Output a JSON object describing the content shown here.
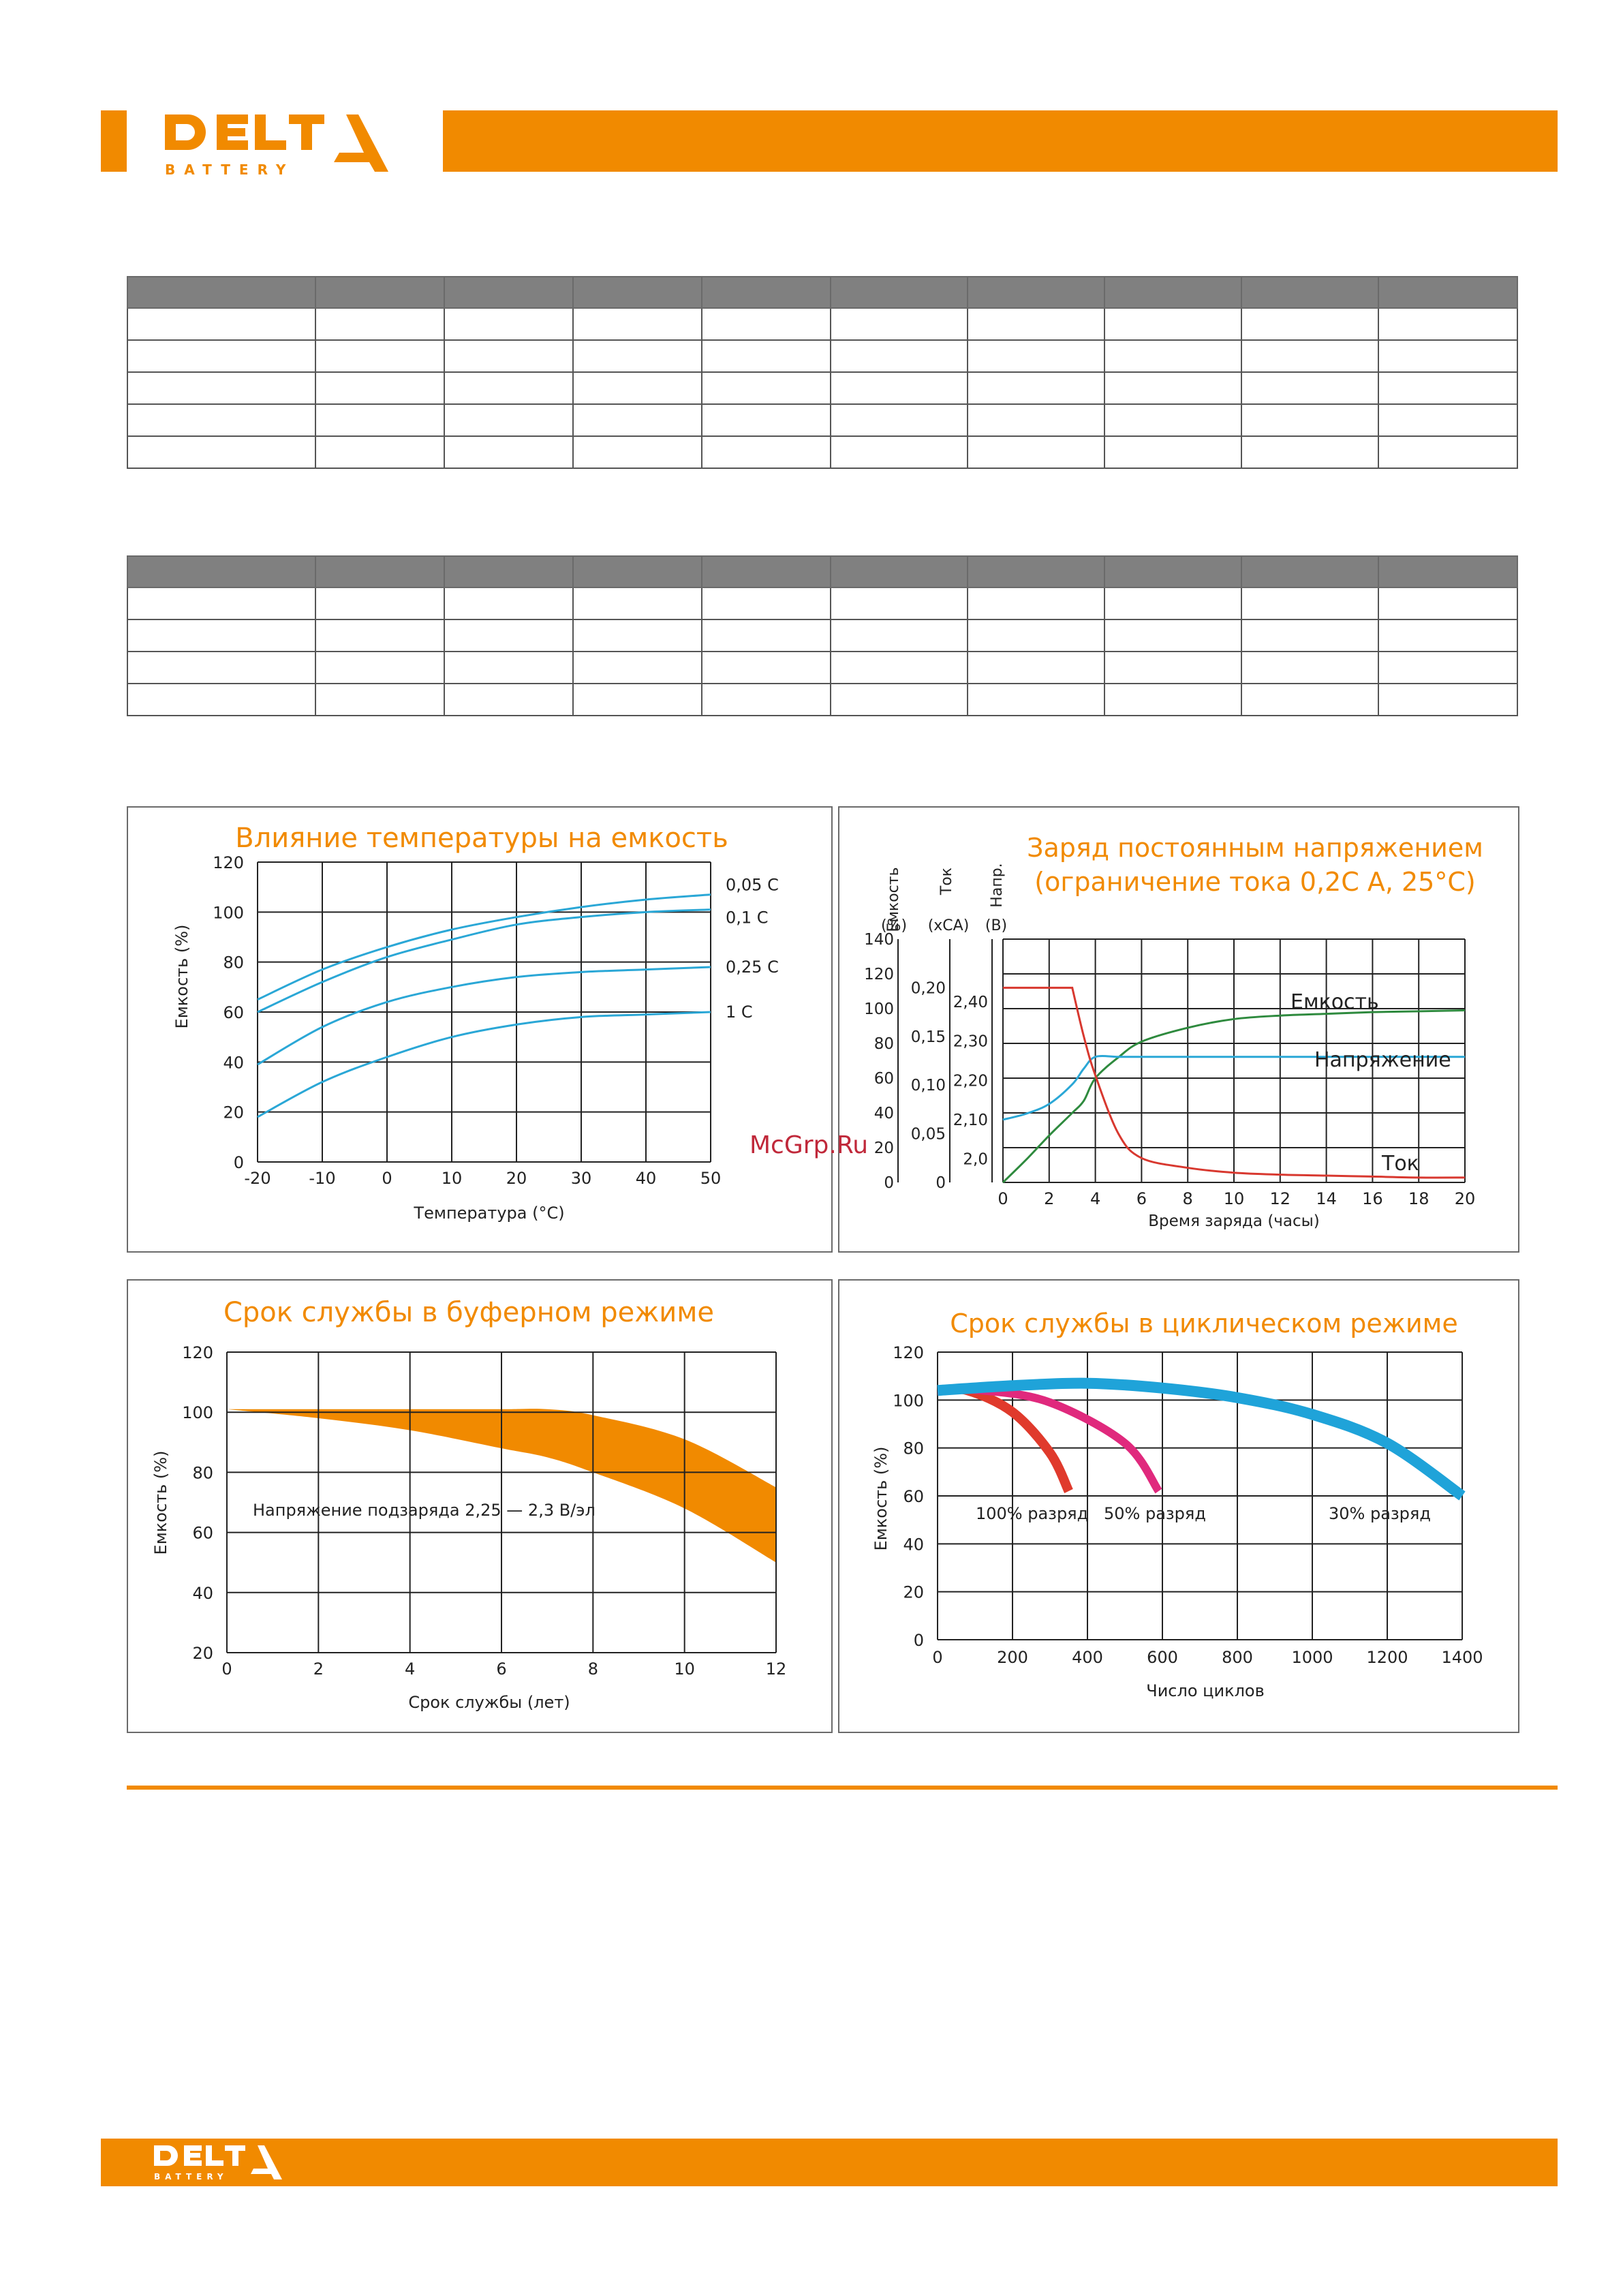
{
  "brand": {
    "name": "DELTA",
    "sub": "BATTERY",
    "color": "#f18a00"
  },
  "watermark": "McGrp.Ru",
  "tables": {
    "rows": 5,
    "cols": 10
  },
  "charts": {
    "temp": {
      "title": "Влияние температуры на емкость",
      "ylabel": "Емкость (%)",
      "xlabel": "Температура (°C)",
      "xticks": [
        "-20",
        "-10",
        "0",
        "10",
        "20",
        "30",
        "40",
        "50"
      ],
      "yticks": [
        "0",
        "20",
        "40",
        "60",
        "80",
        "100",
        "120"
      ],
      "series_labels": [
        "0,05 C",
        "0,1 C",
        "0,25 C",
        "1 C"
      ]
    },
    "charge": {
      "title1": "Заряд постоянным напряжением",
      "title2": "(ограничение тока 0,2С А, 25°С)",
      "head_capacity": "Емкость",
      "head_capacity_unit": "(%)",
      "head_current": "Ток",
      "head_current_unit": "(хСА)",
      "head_voltage": "Напр.",
      "head_voltage_unit": "(В)",
      "cap_ticks": [
        "0",
        "20",
        "40",
        "60",
        "80",
        "100",
        "120",
        "140"
      ],
      "cur_ticks": [
        "0",
        "0,05",
        "0,10",
        "0,15",
        "0,20"
      ],
      "volt_ticks": [
        "2,0",
        "2,10",
        "2,20",
        "2,30",
        "2,40"
      ],
      "xticks": [
        "0",
        "2",
        "4",
        "6",
        "8",
        "10",
        "12",
        "14",
        "16",
        "18",
        "20"
      ],
      "xlabel": "Время заряда (часы)",
      "label_capacity": "Емкость",
      "label_voltage": "Напряжение",
      "label_current": "Ток"
    },
    "float": {
      "title": "Срок службы в буферном режиме",
      "ylabel": "Емкость (%)",
      "xlabel": "Срок службы (лет)",
      "xticks": [
        "0",
        "2",
        "4",
        "6",
        "8",
        "10",
        "12"
      ],
      "yticks": [
        "20",
        "40",
        "60",
        "80",
        "100",
        "120"
      ],
      "note": "Напряжение подзаряда 2,25 — 2,3 В/эл"
    },
    "cycle": {
      "title": "Срок службы в циклическом режиме",
      "ylabel": "Емкость (%)",
      "xlabel": "Число циклов",
      "xticks": [
        "0",
        "200",
        "400",
        "600",
        "800",
        "1000",
        "1200",
        "1400"
      ],
      "yticks": [
        "0",
        "20",
        "40",
        "60",
        "80",
        "100",
        "120"
      ],
      "labels": [
        "100% разряд",
        "50% разряд",
        "30% разряд"
      ]
    }
  },
  "chart_data": [
    {
      "type": "line",
      "title": "Влияние температуры на емкость",
      "xlabel": "Температура (°C)",
      "ylabel": "Емкость (%)",
      "xlim": [
        -20,
        50
      ],
      "ylim": [
        0,
        120
      ],
      "x": [
        -20,
        -10,
        0,
        10,
        20,
        30,
        40,
        50
      ],
      "series": [
        {
          "name": "0,05 C",
          "values": [
            65,
            77,
            86,
            93,
            98,
            102,
            105,
            107
          ]
        },
        {
          "name": "0,1 C",
          "values": [
            60,
            72,
            82,
            89,
            95,
            98,
            100,
            101
          ]
        },
        {
          "name": "0,25 C",
          "values": [
            39,
            54,
            64,
            70,
            74,
            76,
            77,
            78
          ]
        },
        {
          "name": "1 C",
          "values": [
            18,
            32,
            42,
            50,
            55,
            58,
            59,
            60
          ]
        }
      ]
    },
    {
      "type": "line",
      "title": "Заряд постоянным напряжением (ограничение тока 0,2С А, 25°С)",
      "xlabel": "Время заряда (часы)",
      "xlim": [
        0,
        20
      ],
      "x": [
        0,
        1,
        2,
        3,
        3.5,
        4,
        5,
        6,
        8,
        10,
        12,
        14,
        16,
        18,
        20
      ],
      "series": [
        {
          "name": "Емкость",
          "unit": "%",
          "values": [
            0,
            13,
            27,
            40,
            47,
            60,
            72,
            81,
            89,
            94,
            96,
            97,
            98,
            98.5,
            99
          ]
        },
        {
          "name": "Напряжение",
          "unit": "В",
          "values": [
            2.1,
            2.115,
            2.14,
            2.19,
            2.23,
            2.26,
            2.26,
            2.26,
            2.26,
            2.26,
            2.26,
            2.26,
            2.26,
            2.26,
            2.26
          ]
        },
        {
          "name": "Ток",
          "unit": "хСА",
          "values": [
            0.2,
            0.2,
            0.2,
            0.2,
            0.15,
            0.11,
            0.05,
            0.025,
            0.015,
            0.01,
            0.008,
            0.007,
            0.006,
            0.005,
            0.005
          ]
        }
      ]
    },
    {
      "type": "area",
      "title": "Срок службы в буферном режиме",
      "xlabel": "Срок службы (лет)",
      "ylabel": "Емкость (%)",
      "xlim": [
        0,
        12
      ],
      "ylim": [
        20,
        120
      ],
      "x": [
        0,
        2,
        4,
        6,
        7,
        8,
        10,
        12
      ],
      "upper": [
        101,
        101,
        101,
        101,
        101,
        99,
        91,
        75
      ],
      "lower": [
        101,
        98,
        94,
        88,
        85,
        80,
        68,
        50
      ]
    },
    {
      "type": "line",
      "title": "Срок службы в циклическом режиме",
      "xlabel": "Число циклов",
      "ylabel": "Емкость (%)",
      "xlim": [
        0,
        1400
      ],
      "ylim": [
        0,
        120
      ],
      "series": [
        {
          "name": "100% разряд",
          "x": [
            0,
            80,
            200,
            300,
            350
          ],
          "values": [
            104,
            104,
            95,
            78,
            62
          ]
        },
        {
          "name": "50% разряд",
          "x": [
            0,
            120,
            300,
            500,
            590
          ],
          "values": [
            104,
            104,
            99,
            82,
            62
          ]
        },
        {
          "name": "30% разряд",
          "x": [
            0,
            200,
            400,
            600,
            800,
            1000,
            1200,
            1400
          ],
          "values": [
            104,
            106,
            107,
            105,
            101,
            94,
            82,
            60
          ]
        }
      ]
    }
  ]
}
